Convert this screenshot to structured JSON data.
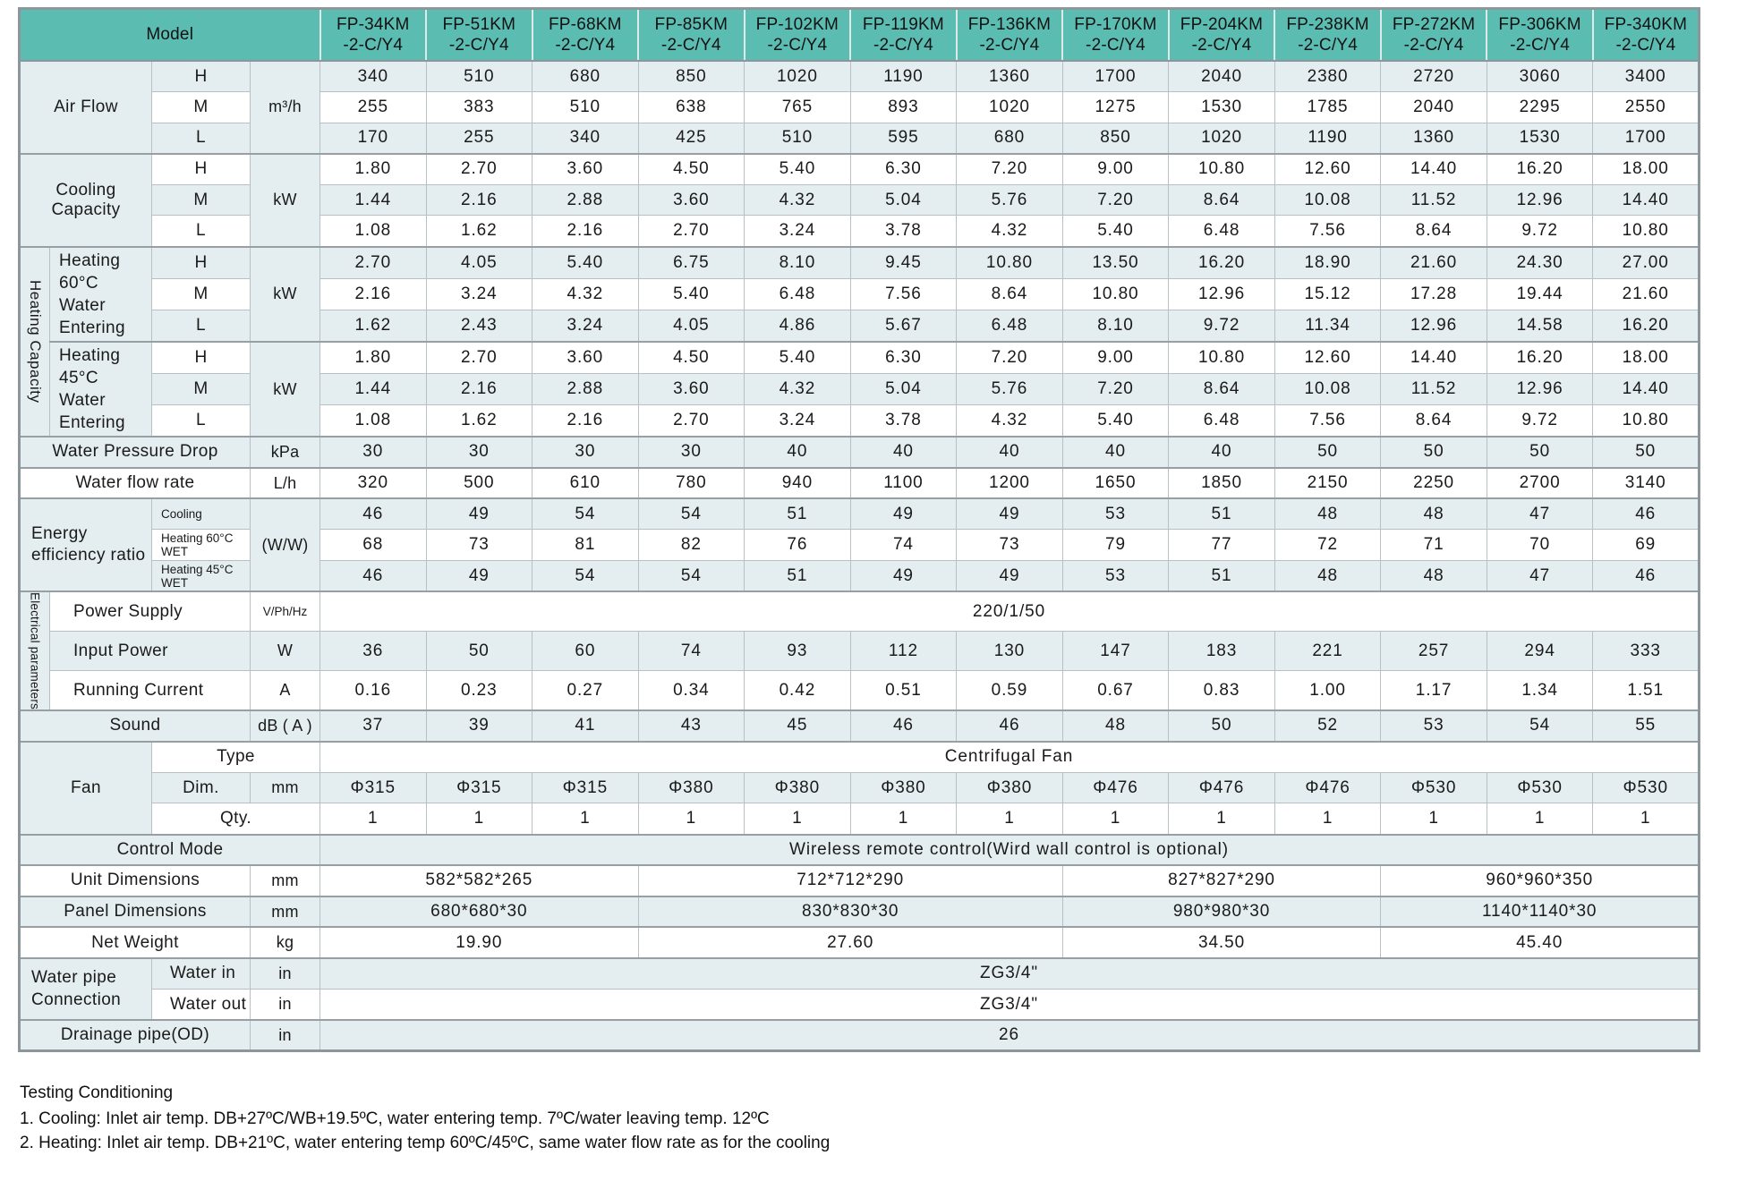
{
  "colors": {
    "header_teal": "#5bbcb2",
    "row_shade": "#e4edf0",
    "border_light": "#b7c0c4",
    "border_dark": "#8d979b"
  },
  "header": {
    "model_label": "Model",
    "models": [
      {
        "line1": "FP-34KM",
        "line2": "-2-C/Y4"
      },
      {
        "line1": "FP-51KM",
        "line2": "-2-C/Y4"
      },
      {
        "line1": "FP-68KM",
        "line2": "-2-C/Y4"
      },
      {
        "line1": "FP-85KM",
        "line2": "-2-C/Y4"
      },
      {
        "line1": "FP-102KM",
        "line2": "-2-C/Y4"
      },
      {
        "line1": "FP-119KM",
        "line2": "-2-C/Y4"
      },
      {
        "line1": "FP-136KM",
        "line2": "-2-C/Y4"
      },
      {
        "line1": "FP-170KM",
        "line2": "-2-C/Y4"
      },
      {
        "line1": "FP-204KM",
        "line2": "-2-C/Y4"
      },
      {
        "line1": "FP-238KM",
        "line2": "-2-C/Y4"
      },
      {
        "line1": "FP-272KM",
        "line2": "-2-C/Y4"
      },
      {
        "line1": "FP-306KM",
        "line2": "-2-C/Y4"
      },
      {
        "line1": "FP-340KM",
        "line2": "-2-C/Y4"
      }
    ]
  },
  "table": {
    "rows": [
      {
        "sec": true,
        "labels": [
          {
            "t": "Air Flow",
            "cs": 2,
            "rs": 3,
            "cls": "sp",
            "name": "row-label-air-flow"
          },
          {
            "t": "H",
            "name": "speed-label-h"
          },
          {
            "t": "m³/h",
            "rs": 3,
            "cls": "sp unit",
            "name": "unit-label"
          }
        ],
        "data": {
          "values": [
            "340",
            "510",
            "680",
            "850",
            "1020",
            "1190",
            "1360",
            "1700",
            "2040",
            "2380",
            "2720",
            "3060",
            "3400"
          ]
        }
      },
      {
        "labels": [
          {
            "t": "M",
            "name": "speed-label-m"
          }
        ],
        "data": {
          "values": [
            "255",
            "383",
            "510",
            "638",
            "765",
            "893",
            "1020",
            "1275",
            "1530",
            "1785",
            "2040",
            "2295",
            "2550"
          ]
        }
      },
      {
        "labels": [
          {
            "t": "L",
            "name": "speed-label-l"
          }
        ],
        "data": {
          "values": [
            "170",
            "255",
            "340",
            "425",
            "510",
            "595",
            "680",
            "850",
            "1020",
            "1190",
            "1360",
            "1530",
            "1700"
          ]
        }
      },
      {
        "sec": true,
        "labels": [
          {
            "t": "Cooling Capacity",
            "cs": 2,
            "rs": 3,
            "cls": "sp",
            "name": "row-label-cooling-capacity"
          },
          {
            "t": "H",
            "name": "speed-label-h"
          },
          {
            "t": "kW",
            "rs": 3,
            "cls": "sp unit",
            "name": "unit-label"
          }
        ],
        "data": {
          "values": [
            "1.80",
            "2.70",
            "3.60",
            "4.50",
            "5.40",
            "6.30",
            "7.20",
            "9.00",
            "10.80",
            "12.60",
            "14.40",
            "16.20",
            "18.00"
          ]
        }
      },
      {
        "labels": [
          {
            "t": "M",
            "name": "speed-label-m"
          }
        ],
        "data": {
          "values": [
            "1.44",
            "2.16",
            "2.88",
            "3.60",
            "4.32",
            "5.04",
            "5.76",
            "7.20",
            "8.64",
            "10.08",
            "11.52",
            "12.96",
            "14.40"
          ]
        }
      },
      {
        "labels": [
          {
            "t": "L",
            "name": "speed-label-l"
          }
        ],
        "data": {
          "values": [
            "1.08",
            "1.62",
            "2.16",
            "2.70",
            "3.24",
            "3.78",
            "4.32",
            "5.40",
            "6.48",
            "7.56",
            "8.64",
            "9.72",
            "10.80"
          ]
        }
      },
      {
        "sec": true,
        "labels": [
          {
            "t": "Heating Capacity",
            "rs": 6,
            "cls": "sp vt",
            "name": "row-label-heating-capacity"
          },
          {
            "t": "Heating 60°C Water Entering",
            "rs": 3,
            "cls": "sp left wrap",
            "name": "row-label-heating-60"
          },
          {
            "t": "H",
            "name": "speed-label-h"
          },
          {
            "t": "kW",
            "rs": 3,
            "cls": "sp unit",
            "name": "unit-label"
          }
        ],
        "data": {
          "values": [
            "2.70",
            "4.05",
            "5.40",
            "6.75",
            "8.10",
            "9.45",
            "10.80",
            "13.50",
            "16.20",
            "18.90",
            "21.60",
            "24.30",
            "27.00"
          ]
        }
      },
      {
        "labels": [
          {
            "t": "M",
            "name": "speed-label-m"
          }
        ],
        "data": {
          "values": [
            "2.16",
            "3.24",
            "4.32",
            "5.40",
            "6.48",
            "7.56",
            "8.64",
            "10.80",
            "12.96",
            "15.12",
            "17.28",
            "19.44",
            "21.60"
          ]
        }
      },
      {
        "labels": [
          {
            "t": "L",
            "name": "speed-label-l"
          }
        ],
        "data": {
          "values": [
            "1.62",
            "2.43",
            "3.24",
            "4.05",
            "4.86",
            "5.67",
            "6.48",
            "8.10",
            "9.72",
            "11.34",
            "12.96",
            "14.58",
            "16.20"
          ]
        }
      },
      {
        "sec": true,
        "labels": [
          {
            "t": "Heating 45°C Water Entering",
            "rs": 3,
            "cls": "sp left wrap",
            "name": "row-label-heating-45"
          },
          {
            "t": "H",
            "name": "speed-label-h"
          },
          {
            "t": "kW",
            "rs": 3,
            "cls": "sp unit",
            "name": "unit-label"
          }
        ],
        "data": {
          "values": [
            "1.80",
            "2.70",
            "3.60",
            "4.50",
            "5.40",
            "6.30",
            "7.20",
            "9.00",
            "10.80",
            "12.60",
            "14.40",
            "16.20",
            "18.00"
          ]
        }
      },
      {
        "labels": [
          {
            "t": "M",
            "name": "speed-label-m"
          }
        ],
        "data": {
          "values": [
            "1.44",
            "2.16",
            "2.88",
            "3.60",
            "4.32",
            "5.04",
            "5.76",
            "7.20",
            "8.64",
            "10.08",
            "11.52",
            "12.96",
            "14.40"
          ]
        }
      },
      {
        "labels": [
          {
            "t": "L",
            "name": "speed-label-l"
          }
        ],
        "data": {
          "values": [
            "1.08",
            "1.62",
            "2.16",
            "2.70",
            "3.24",
            "3.78",
            "4.32",
            "5.40",
            "6.48",
            "7.56",
            "8.64",
            "9.72",
            "10.80"
          ]
        }
      },
      {
        "sec": true,
        "labels": [
          {
            "t": "Water Pressure Drop",
            "cs": 3,
            "name": "row-label-water-pressure-drop"
          },
          {
            "t": "kPa",
            "cls": "unit",
            "name": "unit-label"
          }
        ],
        "data": {
          "values": [
            "30",
            "30",
            "30",
            "30",
            "40",
            "40",
            "40",
            "40",
            "40",
            "50",
            "50",
            "50",
            "50"
          ]
        }
      },
      {
        "sec": true,
        "labels": [
          {
            "t": "Water flow rate",
            "cs": 3,
            "name": "row-label-water-flow-rate"
          },
          {
            "t": "L/h",
            "cls": "unit",
            "name": "unit-label"
          }
        ],
        "data": {
          "values": [
            "320",
            "500",
            "610",
            "780",
            "940",
            "1100",
            "1200",
            "1650",
            "1850",
            "2150",
            "2250",
            "2700",
            "3140"
          ]
        }
      },
      {
        "sec": true,
        "labels": [
          {
            "t": "Energy efficiency ratio",
            "cs": 2,
            "rs": 3,
            "cls": "sp left eer",
            "name": "row-label-eer"
          },
          {
            "t": "Cooling",
            "cls": "small left",
            "name": "eer-sub-label-cooling"
          },
          {
            "t": "(W/W)",
            "rs": 3,
            "cls": "sp unit",
            "name": "unit-label"
          }
        ],
        "data": {
          "values": [
            "46",
            "49",
            "54",
            "54",
            "51",
            "49",
            "49",
            "53",
            "51",
            "48",
            "48",
            "47",
            "46"
          ]
        }
      },
      {
        "labels": [
          {
            "t": "Heating 60°C WET",
            "cls": "small left",
            "name": "eer-sub-label-heating-60"
          }
        ],
        "data": {
          "values": [
            "68",
            "73",
            "81",
            "82",
            "76",
            "74",
            "73",
            "79",
            "77",
            "72",
            "71",
            "70",
            "69"
          ]
        }
      },
      {
        "labels": [
          {
            "t": "Heating 45°C WET",
            "cls": "small left",
            "name": "eer-sub-label-heating-45"
          }
        ],
        "data": {
          "values": [
            "46",
            "49",
            "54",
            "54",
            "51",
            "49",
            "49",
            "53",
            "51",
            "48",
            "48",
            "47",
            "46"
          ]
        }
      },
      {
        "sec": true,
        "labels": [
          {
            "t": "Electrical parameters",
            "rs": 3,
            "cls": "sp vts",
            "name": "row-label-electrical-parameters"
          },
          {
            "t": "Power Supply",
            "cs": 2,
            "cls": "left pad",
            "name": "row-label-power-supply"
          },
          {
            "t": "V/Ph/Hz",
            "cls": "unit u-small",
            "name": "unit-label"
          }
        ],
        "data": {
          "merged": "220/1/50"
        }
      },
      {
        "labels": [
          {
            "t": "Input Power",
            "cs": 2,
            "cls": "left pad",
            "name": "row-label-input-power"
          },
          {
            "t": "W",
            "cls": "unit",
            "name": "unit-label"
          }
        ],
        "data": {
          "values": [
            "36",
            "50",
            "60",
            "74",
            "93",
            "112",
            "130",
            "147",
            "183",
            "221",
            "257",
            "294",
            "333"
          ]
        }
      },
      {
        "labels": [
          {
            "t": "Running Current",
            "cs": 2,
            "cls": "left pad",
            "name": "row-label-running-current"
          },
          {
            "t": "A",
            "cls": "unit",
            "name": "unit-label"
          }
        ],
        "data": {
          "values": [
            "0.16",
            "0.23",
            "0.27",
            "0.34",
            "0.42",
            "0.51",
            "0.59",
            "0.67",
            "0.83",
            "1.00",
            "1.17",
            "1.34",
            "1.51"
          ]
        }
      },
      {
        "sec": true,
        "labels": [
          {
            "t": "Sound",
            "cs": 3,
            "name": "row-label-sound"
          },
          {
            "t": "dB ( A )",
            "cls": "unit",
            "name": "unit-label"
          }
        ],
        "data": {
          "values": [
            "37",
            "39",
            "41",
            "43",
            "45",
            "46",
            "46",
            "48",
            "50",
            "52",
            "53",
            "54",
            "55"
          ]
        }
      },
      {
        "sec": true,
        "labels": [
          {
            "t": "Fan",
            "cs": 2,
            "rs": 3,
            "cls": "sp",
            "name": "row-label-fan"
          },
          {
            "t": "Type",
            "cs": 2,
            "name": "fan-sub-label-type"
          }
        ],
        "data": {
          "merged": "Centrifugal Fan"
        }
      },
      {
        "labels": [
          {
            "t": "Dim.",
            "name": "fan-sub-label-dim"
          },
          {
            "t": "mm",
            "cls": "unit",
            "name": "unit-label"
          }
        ],
        "data": {
          "values": [
            "Φ315",
            "Φ315",
            "Φ315",
            "Φ380",
            "Φ380",
            "Φ380",
            "Φ380",
            "Φ476",
            "Φ476",
            "Φ476",
            "Φ530",
            "Φ530",
            "Φ530"
          ]
        }
      },
      {
        "labels": [
          {
            "t": "Qty.",
            "cs": 2,
            "name": "fan-sub-label-qty"
          }
        ],
        "data": {
          "values": [
            "1",
            "1",
            "1",
            "1",
            "1",
            "1",
            "1",
            "1",
            "1",
            "1",
            "1",
            "1",
            "1"
          ]
        }
      },
      {
        "sec": true,
        "labels": [
          {
            "t": "Control Mode",
            "cs": 4,
            "name": "row-label-control-mode"
          }
        ],
        "data": {
          "merged": "Wireless remote control(Wird wall control is optional)"
        }
      },
      {
        "sec": true,
        "labels": [
          {
            "t": "Unit Dimensions",
            "cs": 3,
            "name": "row-label-unit-dimensions"
          },
          {
            "t": "mm",
            "cls": "unit",
            "name": "unit-label"
          }
        ],
        "data": {
          "groups": [
            {
              "t": "582*582*265",
              "span": 3
            },
            {
              "t": "712*712*290",
              "span": 4
            },
            {
              "t": "827*827*290",
              "span": 3
            },
            {
              "t": "960*960*350",
              "span": 3
            }
          ]
        }
      },
      {
        "sec": true,
        "labels": [
          {
            "t": "Panel Dimensions",
            "cs": 3,
            "name": "row-label-panel-dimensions"
          },
          {
            "t": "mm",
            "cls": "unit",
            "name": "unit-label"
          }
        ],
        "data": {
          "groups": [
            {
              "t": "680*680*30",
              "span": 3
            },
            {
              "t": "830*830*30",
              "span": 4
            },
            {
              "t": "980*980*30",
              "span": 3
            },
            {
              "t": "1140*1140*30",
              "span": 3
            }
          ]
        }
      },
      {
        "sec": true,
        "labels": [
          {
            "t": "Net Weight",
            "cs": 3,
            "name": "row-label-net-weight"
          },
          {
            "t": "kg",
            "cls": "unit",
            "name": "unit-label"
          }
        ],
        "data": {
          "groups": [
            {
              "t": "19.90",
              "span": 3
            },
            {
              "t": "27.60",
              "span": 4
            },
            {
              "t": "34.50",
              "span": 3
            },
            {
              "t": "45.40",
              "span": 3
            }
          ]
        }
      },
      {
        "sec": true,
        "labels": [
          {
            "t": "Water pipe Connection",
            "cs": 2,
            "rs": 2,
            "cls": "sp left wrap2",
            "name": "row-label-water-pipe-connection"
          },
          {
            "t": "Water in",
            "cls": "left padw",
            "name": "pipe-sub-label-water-in"
          },
          {
            "t": "in",
            "cls": "unit",
            "name": "unit-label"
          }
        ],
        "data": {
          "merged": "ZG3/4\""
        }
      },
      {
        "labels": [
          {
            "t": "Water out",
            "cls": "left padw",
            "name": "pipe-sub-label-water-out"
          },
          {
            "t": "in",
            "cls": "unit",
            "name": "unit-label"
          }
        ],
        "data": {
          "merged": "ZG3/4\""
        }
      },
      {
        "sec": true,
        "labels": [
          {
            "t": "Drainage pipe(OD)",
            "cs": 3,
            "name": "row-label-drainage-pipe"
          },
          {
            "t": "in",
            "cls": "unit",
            "name": "unit-label"
          }
        ],
        "data": {
          "merged": "26"
        }
      }
    ]
  },
  "footer": {
    "title": "Testing Conditioning",
    "note1": "1. Cooling: Inlet air temp. DB+27ºC/WB+19.5ºC, water entering temp. 7ºC/water leaving temp. 12ºC",
    "note2": "2. Heating: Inlet air temp. DB+21ºC, water entering temp 60ºC/45ºC, same water flow rate as for the cooling"
  }
}
